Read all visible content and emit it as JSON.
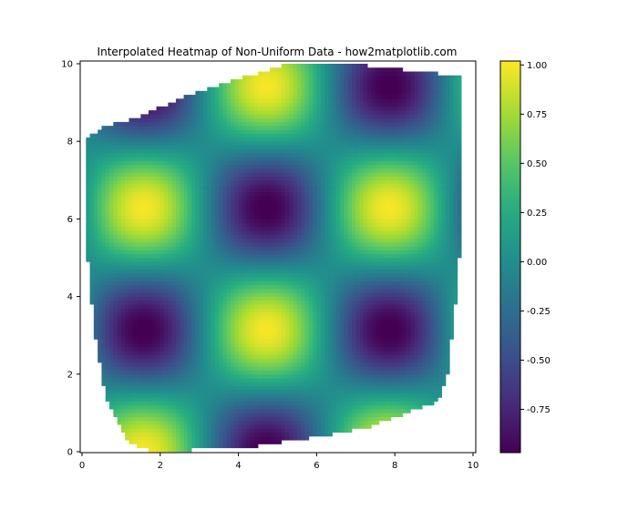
{
  "chart_data": {
    "type": "heatmap",
    "title": "Interpolated Heatmap of Non-Uniform Data - how2matplotlib.com",
    "xlabel": "",
    "ylabel": "",
    "xlim": [
      0,
      10
    ],
    "ylim": [
      0,
      10
    ],
    "x_ticks": [
      0,
      2,
      4,
      6,
      8,
      10
    ],
    "y_ticks": [
      0,
      2,
      4,
      6,
      8,
      10
    ],
    "x_tick_labels": [
      "0",
      "2",
      "4",
      "6",
      "8",
      "10"
    ],
    "y_tick_labels": [
      "0",
      "2",
      "4",
      "6",
      "8",
      "10"
    ],
    "colormap": "viridis",
    "value_range": [
      -0.97,
      1.02
    ],
    "colorbar": {
      "ticks": [
        1.0,
        0.75,
        0.5,
        0.25,
        0.0,
        -0.25,
        -0.5,
        -0.75
      ],
      "tick_labels": [
        "1.00",
        "0.75",
        "0.50",
        "0.25",
        "0.00",
        "-0.25",
        "-0.50",
        "-0.75"
      ]
    },
    "function": "sin(x) * cos(y)",
    "data_hull": [
      [
        0.15,
        8.1
      ],
      [
        0.5,
        8.35
      ],
      [
        1.5,
        8.65
      ],
      [
        2.5,
        9.1
      ],
      [
        3.8,
        9.55
      ],
      [
        5.2,
        9.98
      ],
      [
        7.0,
        9.98
      ],
      [
        8.5,
        9.82
      ],
      [
        9.7,
        9.68
      ],
      [
        9.75,
        6.7
      ],
      [
        9.6,
        4.2
      ],
      [
        9.35,
        2.0
      ],
      [
        9.1,
        1.3
      ],
      [
        7.3,
        0.62
      ],
      [
        5.8,
        0.35
      ],
      [
        4.5,
        0.15
      ],
      [
        2.8,
        0.05
      ],
      [
        1.7,
        0.05
      ],
      [
        1.2,
        0.25
      ],
      [
        0.6,
        1.4
      ],
      [
        0.3,
        3.2
      ],
      [
        0.1,
        5.5
      ]
    ]
  }
}
